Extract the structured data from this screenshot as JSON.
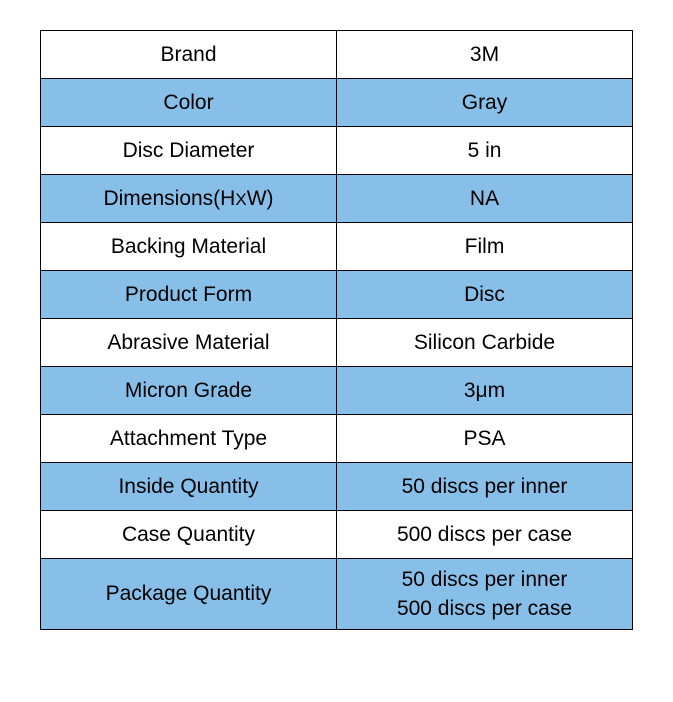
{
  "table": {
    "border_color": "#000000",
    "shaded_bg": "#87bfe9",
    "plain_bg": "#ffffff",
    "font_size": 21,
    "rows": [
      {
        "label": "Brand",
        "value": "3M",
        "shaded": false
      },
      {
        "label": "Color",
        "value": "Gray",
        "shaded": true
      },
      {
        "label": "Disc Diameter",
        "value": "5 in",
        "shaded": false
      },
      {
        "label_html": true,
        "label_pre": "Dimensions(H",
        "label_mid": "X",
        "label_post": "W)",
        "value": "NA",
        "shaded": true
      },
      {
        "label": "Backing Material",
        "value": "Film",
        "shaded": false
      },
      {
        "label": "Product Form",
        "value": "Disc",
        "shaded": true
      },
      {
        "label": "Abrasive Material",
        "value": "Silicon Carbide",
        "shaded": false
      },
      {
        "label": "Micron Grade",
        "value": "3μm",
        "shaded": true
      },
      {
        "label": "Attachment Type",
        "value": "PSA",
        "shaded": false
      },
      {
        "label": "Inside Quantity",
        "value": "50 discs per inner",
        "shaded": true
      },
      {
        "label": "Case Quantity",
        "value": "500 discs per case",
        "shaded": false
      },
      {
        "label": "Package Quantity",
        "value_lines": [
          "50 discs per inner",
          "500 discs per case"
        ],
        "shaded": true,
        "tall": true
      }
    ]
  }
}
